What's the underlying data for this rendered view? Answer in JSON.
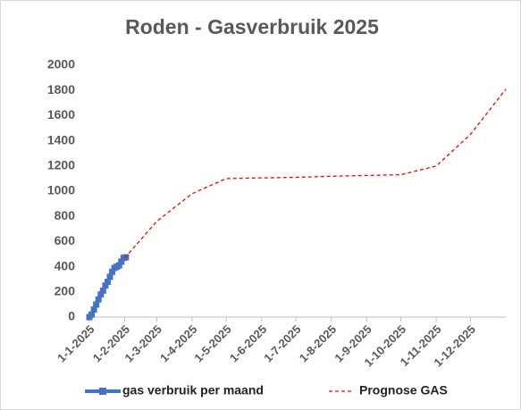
{
  "chart_data": {
    "type": "line",
    "title": "Roden - Gasverbruik 2025",
    "x_type": "date",
    "series": [
      {
        "name": "gas verbruik per maand",
        "color": "#4472c4",
        "style": "solid",
        "marker": "square",
        "x": [
          "2025-01-01",
          "2025-01-03",
          "2025-01-05",
          "2025-01-07",
          "2025-01-09",
          "2025-01-11",
          "2025-01-13",
          "2025-01-15",
          "2025-01-17",
          "2025-01-19",
          "2025-01-21",
          "2025-01-23",
          "2025-01-25",
          "2025-01-27",
          "2025-01-29",
          "2025-01-31",
          "2025-02-02"
        ],
        "values": [
          0,
          20,
          60,
          100,
          140,
          180,
          210,
          250,
          280,
          320,
          360,
          390,
          400,
          410,
          440,
          470,
          475
        ]
      },
      {
        "name": "Prognose GAS",
        "color": "#ff0000",
        "style": "dashed",
        "marker": "none",
        "x": [
          "2025-02-01",
          "2025-03-01",
          "2025-04-01",
          "2025-05-01",
          "2025-06-01",
          "2025-07-01",
          "2025-08-01",
          "2025-09-01",
          "2025-10-01",
          "2025-11-01",
          "2025-12-01",
          "2026-01-01"
        ],
        "values": [
          470,
          760,
          980,
          1100,
          1105,
          1110,
          1118,
          1125,
          1130,
          1200,
          1450,
          1810
        ]
      }
    ],
    "xlim": [
      "2025-01-01",
      "2026-01-01"
    ],
    "xticks": [
      {
        "value": "2025-01-01",
        "label": "1-1-2025"
      },
      {
        "value": "2025-02-01",
        "label": "1-2-2025"
      },
      {
        "value": "2025-03-01",
        "label": "1-3-2025"
      },
      {
        "value": "2025-04-01",
        "label": "1-4-2025"
      },
      {
        "value": "2025-05-01",
        "label": "1-5-2025"
      },
      {
        "value": "2025-06-01",
        "label": "1-6-2025"
      },
      {
        "value": "2025-07-01",
        "label": "1-7-2025"
      },
      {
        "value": "2025-08-01",
        "label": "1-8-2025"
      },
      {
        "value": "2025-09-01",
        "label": "1-9-2025"
      },
      {
        "value": "2025-10-01",
        "label": "1-10-2025"
      },
      {
        "value": "2025-11-01",
        "label": "1-11-2025"
      },
      {
        "value": "2025-12-01",
        "label": "1-12-2025"
      }
    ],
    "ylim": [
      0,
      2000
    ],
    "yticks": [
      0,
      200,
      400,
      600,
      800,
      1000,
      1200,
      1400,
      1600,
      1800,
      2000
    ],
    "grid": false,
    "legend": "bottom"
  }
}
